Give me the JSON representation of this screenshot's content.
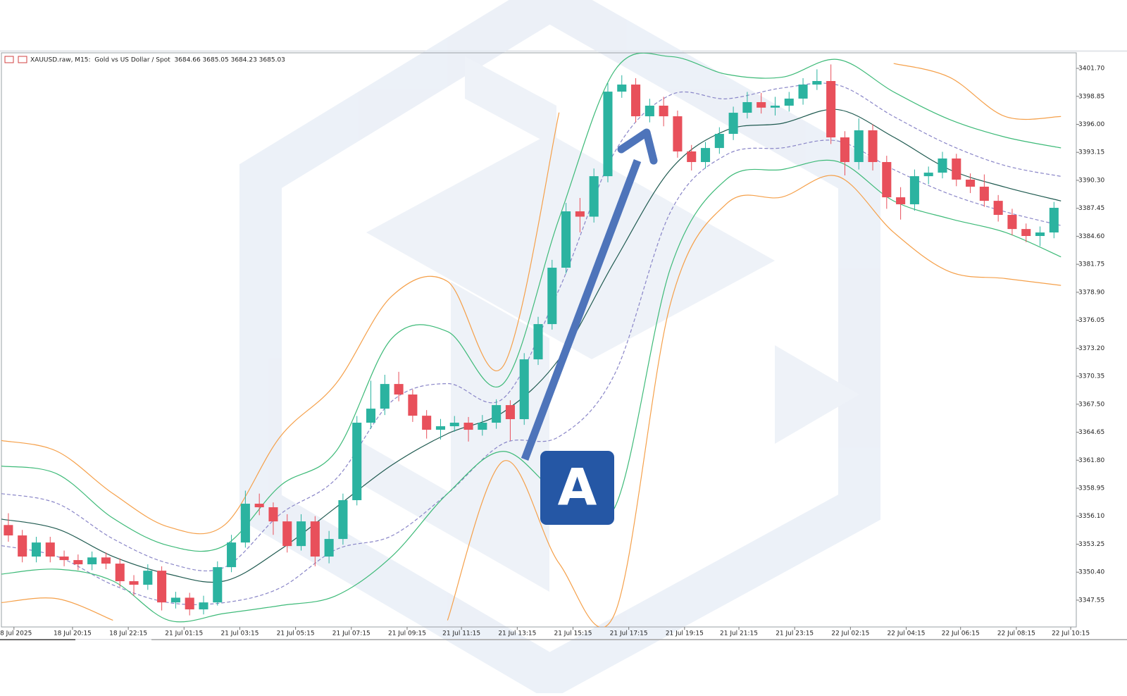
{
  "chart_data": {
    "type": "candlestick",
    "title": "XAUUSD.raw, M15:  Gold vs US Dollar / Spot  3684.66 3685.05 3684.23 3685.03",
    "badge": "A",
    "up_color": "#2bb3a0",
    "down_color": "#e8505b",
    "xlim": [
      0,
      77.1
    ],
    "ylim": [
      3344.82,
      3403.28
    ],
    "xticks": [
      {
        "value": 0.9,
        "label": "18 Jul 2025"
      },
      {
        "value": 5.1,
        "label": "18 Jul 20:15"
      },
      {
        "value": 9.1,
        "label": "18 Jul 22:15"
      },
      {
        "value": 13.1,
        "label": "21 Jul 01:15"
      },
      {
        "value": 17.1,
        "label": "21 Jul 03:15"
      },
      {
        "value": 21.1,
        "label": "21 Jul 05:15"
      },
      {
        "value": 25.1,
        "label": "21 Jul 07:15"
      },
      {
        "value": 29.1,
        "label": "21 Jul 09:15"
      },
      {
        "value": 33.0,
        "label": "21 Jul 11:15"
      },
      {
        "value": 37.0,
        "label": "21 Jul 13:15"
      },
      {
        "value": 41.0,
        "label": "21 Jul 15:15"
      },
      {
        "value": 45.0,
        "label": "21 Jul 17:15"
      },
      {
        "value": 49.0,
        "label": "21 Jul 19:15"
      },
      {
        "value": 52.9,
        "label": "21 Jul 21:15"
      },
      {
        "value": 56.9,
        "label": "21 Jul 23:15"
      },
      {
        "value": 60.9,
        "label": "22 Jul 02:15"
      },
      {
        "value": 64.9,
        "label": "22 Jul 04:15"
      },
      {
        "value": 68.8,
        "label": "22 Jul 06:15"
      },
      {
        "value": 72.8,
        "label": "22 Jul 08:15"
      },
      {
        "value": 76.7,
        "label": "22 Jul 10:15"
      }
    ],
    "yticks": [
      {
        "value": 3347.55,
        "label": "3347.55"
      },
      {
        "value": 3350.4,
        "label": "3350.40"
      },
      {
        "value": 3353.25,
        "label": "3353.25"
      },
      {
        "value": 3356.1,
        "label": "3356.10"
      },
      {
        "value": 3358.95,
        "label": "3358.95"
      },
      {
        "value": 3361.8,
        "label": "3361.80"
      },
      {
        "value": 3364.65,
        "label": "3364.65"
      },
      {
        "value": 3367.5,
        "label": "3367.50"
      },
      {
        "value": 3370.35,
        "label": "3370.35"
      },
      {
        "value": 3373.2,
        "label": "3373.20"
      },
      {
        "value": 3376.05,
        "label": "3376.05"
      },
      {
        "value": 3378.9,
        "label": "3378.90"
      },
      {
        "value": 3381.75,
        "label": "3381.75"
      },
      {
        "value": 3384.6,
        "label": "3384.60"
      },
      {
        "value": 3387.45,
        "label": "3387.45"
      },
      {
        "value": 3390.3,
        "label": "3390.30"
      },
      {
        "value": 3393.15,
        "label": "3393.15"
      },
      {
        "value": 3396.0,
        "label": "3396.00"
      },
      {
        "value": 3398.85,
        "label": "3398.85"
      },
      {
        "value": 3401.7,
        "label": "3401.70"
      }
    ],
    "open": [
      3355.2,
      3354.14,
      3351.99,
      3353.42,
      3351.99,
      3351.63,
      3351.2,
      3351.9,
      3351.27,
      3349.48,
      3349.12,
      3350.55,
      3347.32,
      3347.8,
      3346.61,
      3347.32,
      3350.91,
      3353.42,
      3357.37,
      3357.01,
      3355.57,
      3353.06,
      3355.57,
      3351.99,
      3353.78,
      3357.73,
      3365.62,
      3367.05,
      3369.56,
      3368.49,
      3366.33,
      3364.9,
      3365.26,
      3365.62,
      3364.9,
      3365.62,
      3367.41,
      3365.98,
      3372.07,
      3375.66,
      3381.4,
      3387.14,
      3386.6,
      3390.72,
      3399.33,
      3400.05,
      3396.82,
      3397.9,
      3396.82,
      3393.24,
      3392.16,
      3393.59,
      3395.03,
      3397.18,
      3398.26,
      3397.7,
      3397.9,
      3398.62,
      3400.05,
      3400.41,
      3394.67,
      3392.16,
      3395.39,
      3392.16,
      3388.57,
      3387.86,
      3390.72,
      3391.08,
      3392.52,
      3390.37,
      3389.65,
      3388.21,
      3386.78,
      3385.34,
      3384.63,
      3384.99
    ],
    "high": [
      3356.4,
      3354.7,
      3354.0,
      3354.0,
      3352.6,
      3352.2,
      3352.5,
      3352.4,
      3351.8,
      3350.1,
      3351.2,
      3351.0,
      3348.4,
      3348.3,
      3348.0,
      3351.5,
      3354.2,
      3358.7,
      3358.4,
      3357.5,
      3356.3,
      3356.3,
      3356.1,
      3354.6,
      3358.4,
      3366.3,
      3369.9,
      3370.5,
      3370.8,
      3369.0,
      3366.9,
      3366.0,
      3366.3,
      3366.2,
      3366.4,
      3368.0,
      3367.9,
      3372.7,
      3376.4,
      3382.2,
      3388.0,
      3388.5,
      3391.5,
      3400.2,
      3401.0,
      3400.7,
      3398.6,
      3398.8,
      3397.4,
      3393.9,
      3394.2,
      3395.7,
      3397.8,
      3399.3,
      3399.2,
      3398.8,
      3399.3,
      3400.7,
      3401.6,
      3402.1,
      3395.3,
      3396.6,
      3396.0,
      3392.8,
      3389.6,
      3391.4,
      3391.7,
      3393.2,
      3393.0,
      3391.0,
      3390.9,
      3388.8,
      3387.4,
      3385.9,
      3385.6,
      3388.1
    ],
    "low": [
      3353.5,
      3351.4,
      3351.4,
      3351.4,
      3351.0,
      3350.6,
      3350.6,
      3350.7,
      3348.9,
      3348.0,
      3348.6,
      3346.5,
      3346.7,
      3346.0,
      3346.1,
      3347.0,
      3350.4,
      3352.9,
      3356.2,
      3354.2,
      3352.4,
      3352.6,
      3351.0,
      3351.3,
      3353.2,
      3357.2,
      3365.0,
      3366.4,
      3367.8,
      3365.7,
      3364.0,
      3363.9,
      3364.7,
      3363.7,
      3364.3,
      3365.0,
      3363.8,
      3365.4,
      3371.5,
      3375.1,
      3380.8,
      3385.0,
      3386.0,
      3390.1,
      3398.7,
      3396.2,
      3396.2,
      3395.8,
      3392.6,
      3391.3,
      3391.5,
      3393.0,
      3394.4,
      3396.6,
      3397.1,
      3396.9,
      3397.3,
      3398.0,
      3399.5,
      3394.0,
      3390.8,
      3391.4,
      3391.3,
      3387.4,
      3386.3,
      3387.2,
      3389.9,
      3390.5,
      3389.7,
      3389.0,
      3387.6,
      3386.1,
      3384.7,
      3384.0,
      3383.6,
      3384.4
    ],
    "close": [
      3354.14,
      3351.99,
      3353.42,
      3351.99,
      3351.63,
      3351.2,
      3351.9,
      3351.27,
      3349.48,
      3349.12,
      3350.55,
      3347.32,
      3347.8,
      3346.61,
      3347.32,
      3350.91,
      3353.42,
      3357.37,
      3357.01,
      3355.57,
      3353.06,
      3355.57,
      3351.99,
      3353.78,
      3357.73,
      3365.62,
      3367.05,
      3369.56,
      3368.49,
      3366.33,
      3364.9,
      3365.26,
      3365.62,
      3364.9,
      3365.62,
      3367.41,
      3365.98,
      3372.07,
      3375.66,
      3381.4,
      3387.14,
      3386.6,
      3390.72,
      3399.33,
      3400.05,
      3396.82,
      3397.9,
      3396.82,
      3393.24,
      3392.16,
      3393.59,
      3395.03,
      3397.18,
      3398.26,
      3397.7,
      3397.9,
      3398.62,
      3400.05,
      3400.41,
      3394.67,
      3392.16,
      3395.39,
      3392.16,
      3388.57,
      3387.86,
      3390.72,
      3391.08,
      3392.52,
      3390.37,
      3389.65,
      3388.21,
      3386.78,
      3385.34,
      3384.63,
      3384.99,
      3387.5
    ],
    "band_x": [
      0,
      4,
      8,
      12,
      16,
      20,
      24,
      28,
      32,
      36,
      40,
      44,
      48,
      52,
      56,
      60,
      64,
      68,
      72,
      76
    ],
    "series": [
      {
        "color": "#f5a04a",
        "dash": false,
        "values": [
          3363.8,
          3362.7,
          3358.4,
          3355.0,
          3355.2,
          3364.2,
          3369.6,
          3378.5,
          3380.0,
          3371.4,
          3397.2,
          null,
          null,
          null,
          null,
          null,
          3402.2,
          3400.8,
          3396.8,
          3396.8
        ]
      },
      {
        "color": "#3dba78",
        "dash": false,
        "values": [
          3361.2,
          3360.4,
          3355.9,
          3353.1,
          3353.1,
          3359.2,
          3362.7,
          3374.2,
          3374.9,
          3369.6,
          3386.4,
          3401.5,
          3402.9,
          3401.1,
          3400.8,
          3402.6,
          3399.3,
          3396.5,
          3394.7,
          3393.6
        ]
      },
      {
        "color": "#8a86c8",
        "dash": true,
        "values": [
          3358.4,
          3357.4,
          3353.8,
          3351.3,
          3350.9,
          3356.3,
          3359.9,
          3367.8,
          3369.6,
          3368.1,
          3379.2,
          3393.2,
          3399.0,
          3398.6,
          3399.7,
          3400.0,
          3396.8,
          3393.9,
          3391.8,
          3390.7
        ]
      },
      {
        "color": "#1f5a50",
        "dash": false,
        "values": [
          3355.8,
          3354.8,
          3352.0,
          3350.2,
          3349.5,
          3352.7,
          3357.0,
          3361.3,
          3364.5,
          3366.7,
          3372.1,
          3382.1,
          3391.4,
          3395.4,
          3396.1,
          3397.5,
          3394.7,
          3391.4,
          3389.6,
          3388.2
        ]
      },
      {
        "color": "#8a86c8",
        "dash": true,
        "values": [
          3353.1,
          3352.0,
          3349.1,
          3347.3,
          3347.3,
          3348.8,
          3352.7,
          3354.1,
          3358.4,
          3363.5,
          3364.2,
          3370.6,
          3387.1,
          3392.9,
          3393.6,
          3394.3,
          3391.4,
          3388.9,
          3387.1,
          3385.7
        ]
      },
      {
        "color": "#3dba78",
        "dash": false,
        "values": [
          3350.2,
          3350.7,
          3349.5,
          3345.5,
          3346.2,
          3347.0,
          3348.0,
          3352.0,
          3358.4,
          3362.7,
          3358.4,
          3357.0,
          3381.4,
          3390.4,
          3391.4,
          3392.2,
          3388.2,
          3386.4,
          3385.0,
          3382.5
        ]
      },
      {
        "color": "#f5a04a",
        "dash": false,
        "values": [
          3347.3,
          3347.7,
          3345.5,
          null,
          null,
          null,
          null,
          null,
          3345.5,
          3361.7,
          3351.3,
          3346.2,
          3377.8,
          3387.9,
          3388.6,
          3390.7,
          3385.0,
          3381.0,
          3380.3,
          3379.6
        ]
      }
    ]
  }
}
